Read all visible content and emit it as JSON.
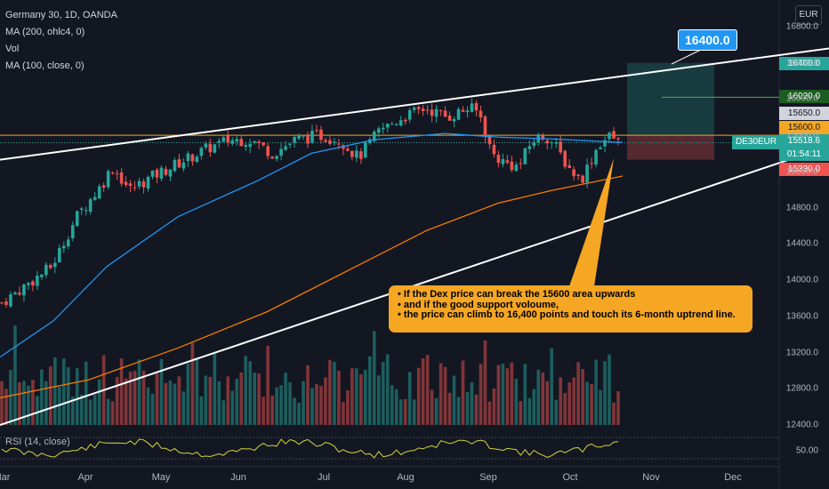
{
  "legend": {
    "symbol": "Germany 30, 1D, OANDA",
    "ma200": "MA (200, ohlc4, 0)",
    "vol": "Vol",
    "ma100": "MA (100, close, 0)"
  },
  "currency": "EUR",
  "target_label": "16400.0",
  "ticker": "DE30EUR",
  "price_tags": {
    "p16400": "16400.0",
    "p16020": "16020.0",
    "p15650": "15650.0",
    "p15600": "15600.0",
    "current": "15518.6",
    "countdown": "01:54:11",
    "p15330": "15330.0"
  },
  "callout": [
    "• If the Dex price can break the 15600 area upwards",
    "• and if the good support voloume,",
    "• the price can climb to 16,400 points and touch its 6-month uptrend line."
  ],
  "rsi_label": "RSI (14, close)",
  "rsi_value": "50.00",
  "colors": {
    "background": "#131722",
    "up": "#26a69a",
    "down": "#ef5350",
    "ma200": "#f57c00",
    "ma100": "#2196f3",
    "rsi": "#d4d43c",
    "callout": "#f5a623"
  },
  "chart_data": {
    "type": "candlestick",
    "y_axis_ticks": [
      "16800.0",
      "16400.0",
      "16000.0",
      "15600.0",
      "15200.0",
      "14800.0",
      "14400.0",
      "14000.0",
      "13600.0",
      "13200.0",
      "12800.0",
      "12400.0"
    ],
    "x_axis_ticks": [
      "Mar",
      "Apr",
      "May",
      "Jun",
      "Jul",
      "Aug",
      "Sep",
      "Oct",
      "Nov",
      "Dec"
    ],
    "ylim": [
      12300,
      16950
    ],
    "key_levels": [
      16400,
      16020,
      15650,
      15600,
      15518.6,
      15330
    ],
    "price_path": [
      [
        0,
        13750
      ],
      [
        14,
        13950
      ],
      [
        28,
        14150
      ],
      [
        42,
        14700
      ],
      [
        56,
        15050
      ],
      [
        62,
        15250
      ],
      [
        72,
        15000
      ],
      [
        85,
        15150
      ],
      [
        100,
        15300
      ],
      [
        115,
        15450
      ],
      [
        128,
        15550
      ],
      [
        140,
        15550
      ],
      [
        152,
        15400
      ],
      [
        165,
        15550
      ],
      [
        178,
        15600
      ],
      [
        190,
        15550
      ],
      [
        200,
        15350
      ],
      [
        212,
        15650
      ],
      [
        225,
        15800
      ],
      [
        238,
        15900
      ],
      [
        250,
        15800
      ],
      [
        262,
        15900
      ],
      [
        268,
        15850
      ],
      [
        275,
        15400
      ],
      [
        282,
        15300
      ],
      [
        290,
        15250
      ],
      [
        298,
        15550
      ],
      [
        305,
        15600
      ],
      [
        310,
        15500
      ],
      [
        318,
        15250
      ],
      [
        325,
        15100
      ],
      [
        335,
        15500
      ],
      [
        342,
        15600
      ],
      [
        346,
        15518.6
      ]
    ],
    "trendlines": {
      "upper": [
        [
          0,
          15330
        ],
        [
          932,
          16560
        ]
      ],
      "lower": [
        [
          0,
          12400
        ],
        [
          932,
          15480
        ]
      ]
    },
    "trade_box": {
      "entry": 15600,
      "target": 16400,
      "stop": 15330
    }
  }
}
